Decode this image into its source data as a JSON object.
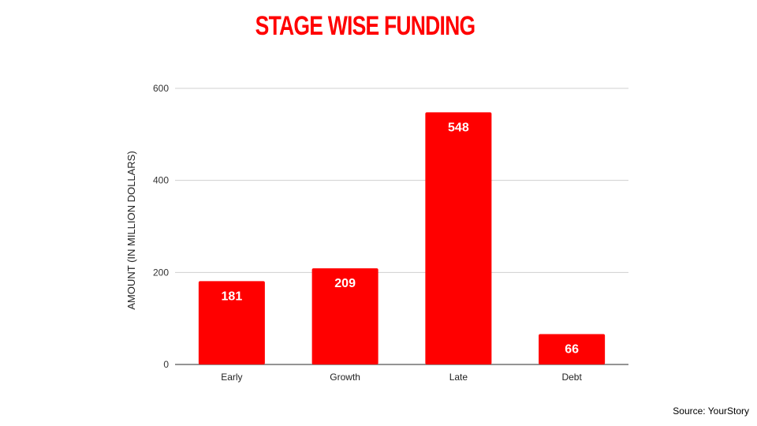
{
  "chart_data": {
    "type": "bar",
    "title": "STAGE WISE FUNDING",
    "ylabel": "AMOUNT (IN MILLION DOLLARS)",
    "xlabel": "",
    "categories": [
      "Early",
      "Growth",
      "Late",
      "Debt"
    ],
    "values": [
      181,
      209,
      548,
      66
    ],
    "data_labels": [
      "181",
      "209",
      "548",
      "66"
    ],
    "ylim": [
      0,
      600
    ],
    "yticks": [
      0,
      200,
      400,
      600
    ],
    "grid": true,
    "legend": "none",
    "bar_color": "#ff0000"
  },
  "title_color": "#ff0000",
  "source_note": "Source: YourStory"
}
